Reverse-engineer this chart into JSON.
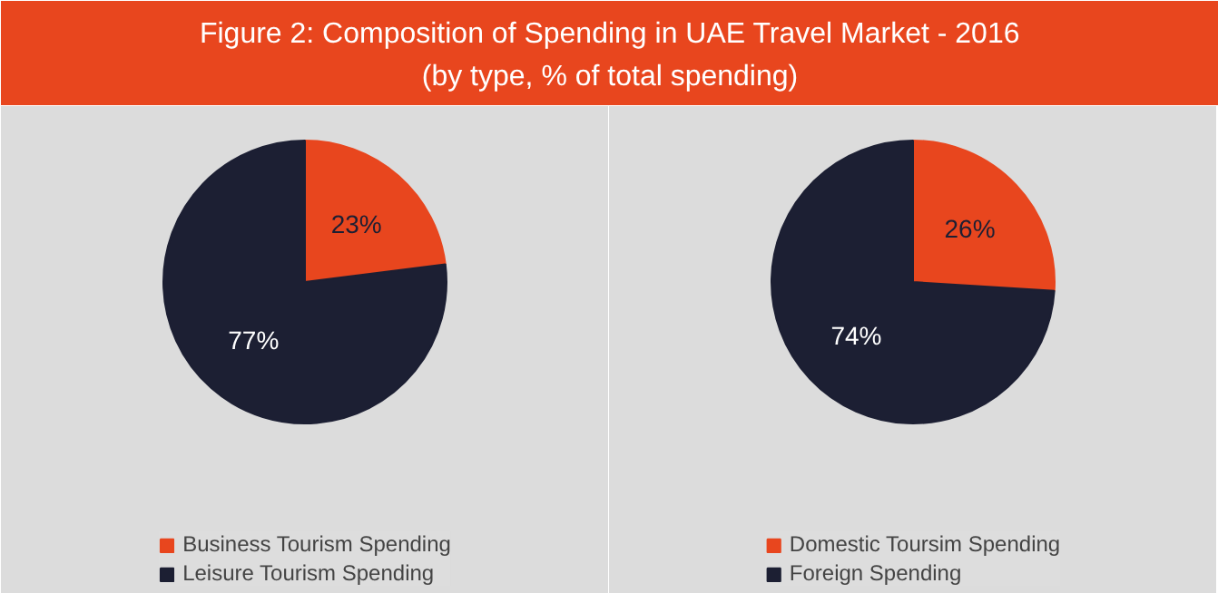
{
  "chart_data": [
    {
      "type": "pie",
      "title": "Figure 2: Composition of Spending in UAE Travel Market - 2016",
      "subtitle": "(by type, % of total spending)",
      "categories": [
        "Business Tourism Spending",
        "Leisure Tourism Spending"
      ],
      "values": [
        23,
        77
      ],
      "value_labels": [
        "23%",
        "77%"
      ],
      "colors": [
        "#e8461e",
        "#1c1f33"
      ],
      "legend": "bottom"
    },
    {
      "type": "pie",
      "categories": [
        "Domestic Toursim Spending",
        "Foreign Spending"
      ],
      "values": [
        26,
        74
      ],
      "value_labels": [
        "26%",
        "74%"
      ],
      "colors": [
        "#e8461e",
        "#1c1f33"
      ],
      "legend": "bottom"
    }
  ]
}
